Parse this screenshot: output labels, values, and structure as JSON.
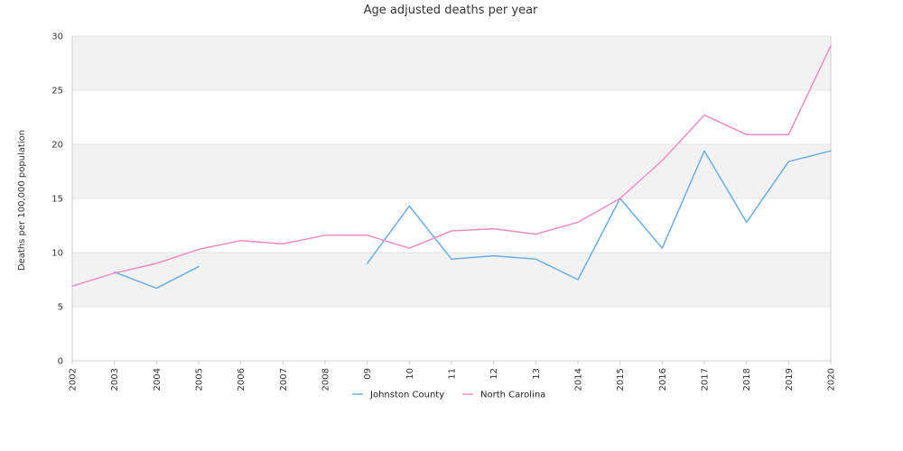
{
  "chart_data": {
    "type": "line",
    "title": "Age adjusted deaths per year",
    "xlabel": "",
    "ylabel": "Deaths per 100,000 population",
    "ylim": [
      0,
      30
    ],
    "yticks": [
      "0",
      "5",
      "10",
      "15",
      "20",
      "25",
      "30"
    ],
    "categories": [
      "2002",
      "2003",
      "2004",
      "2005",
      "2006",
      "2007",
      "2008",
      "09",
      "10",
      "11",
      "12",
      "13",
      "2014",
      "2015",
      "2016",
      "2017",
      "2018",
      "2019",
      "2020"
    ],
    "grid": "horizontal alternating bands",
    "legend_position": "bottom",
    "series": [
      {
        "name": "Johnston County",
        "color": "#6aaee8",
        "values": [
          null,
          8.2,
          6.7,
          8.7,
          null,
          null,
          null,
          9.0,
          14.3,
          9.4,
          9.7,
          9.4,
          7.5,
          15.0,
          10.4,
          19.4,
          12.8,
          18.4,
          19.4
        ]
      },
      {
        "name": "North Carolina",
        "color": "#f08cc0",
        "values": [
          6.9,
          8.1,
          9.0,
          10.3,
          11.1,
          10.8,
          11.6,
          11.6,
          10.4,
          12.0,
          12.2,
          11.7,
          12.8,
          15.0,
          18.5,
          22.7,
          20.9,
          20.9,
          29.1
        ]
      }
    ]
  },
  "colors": {
    "band": "#f2f2f2",
    "gridline": "#e3e3e3",
    "axis": "#cccccc"
  }
}
